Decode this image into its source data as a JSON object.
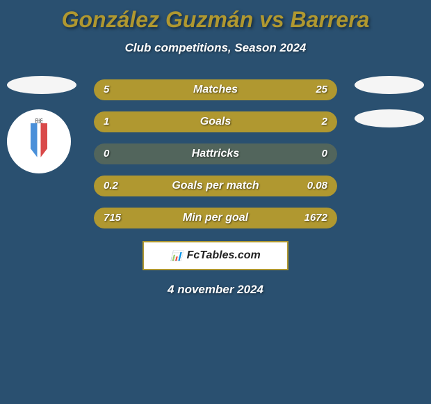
{
  "title": "González Guzmán vs Barrera",
  "subtitle": "Club competitions, Season 2024",
  "date": "4 november 2024",
  "brand": {
    "name": "FcTables.com",
    "icon": "📊"
  },
  "colors": {
    "left_bar": "#b09830",
    "right_bar": "#b09830",
    "bg_bar": "rgba(176, 152, 48, 0.3)"
  },
  "stats": [
    {
      "label": "Matches",
      "left_value": "5",
      "right_value": "25",
      "left_pct": 17,
      "right_pct": 83
    },
    {
      "label": "Goals",
      "left_value": "1",
      "right_value": "2",
      "left_pct": 33,
      "right_pct": 67
    },
    {
      "label": "Hattricks",
      "left_value": "0",
      "right_value": "0",
      "left_pct": 0,
      "right_pct": 0
    },
    {
      "label": "Goals per match",
      "left_value": "0.2",
      "right_value": "0.08",
      "left_pct": 71,
      "right_pct": 29
    },
    {
      "label": "Min per goal",
      "left_value": "715",
      "right_value": "1672",
      "left_pct": 30,
      "right_pct": 70
    }
  ]
}
